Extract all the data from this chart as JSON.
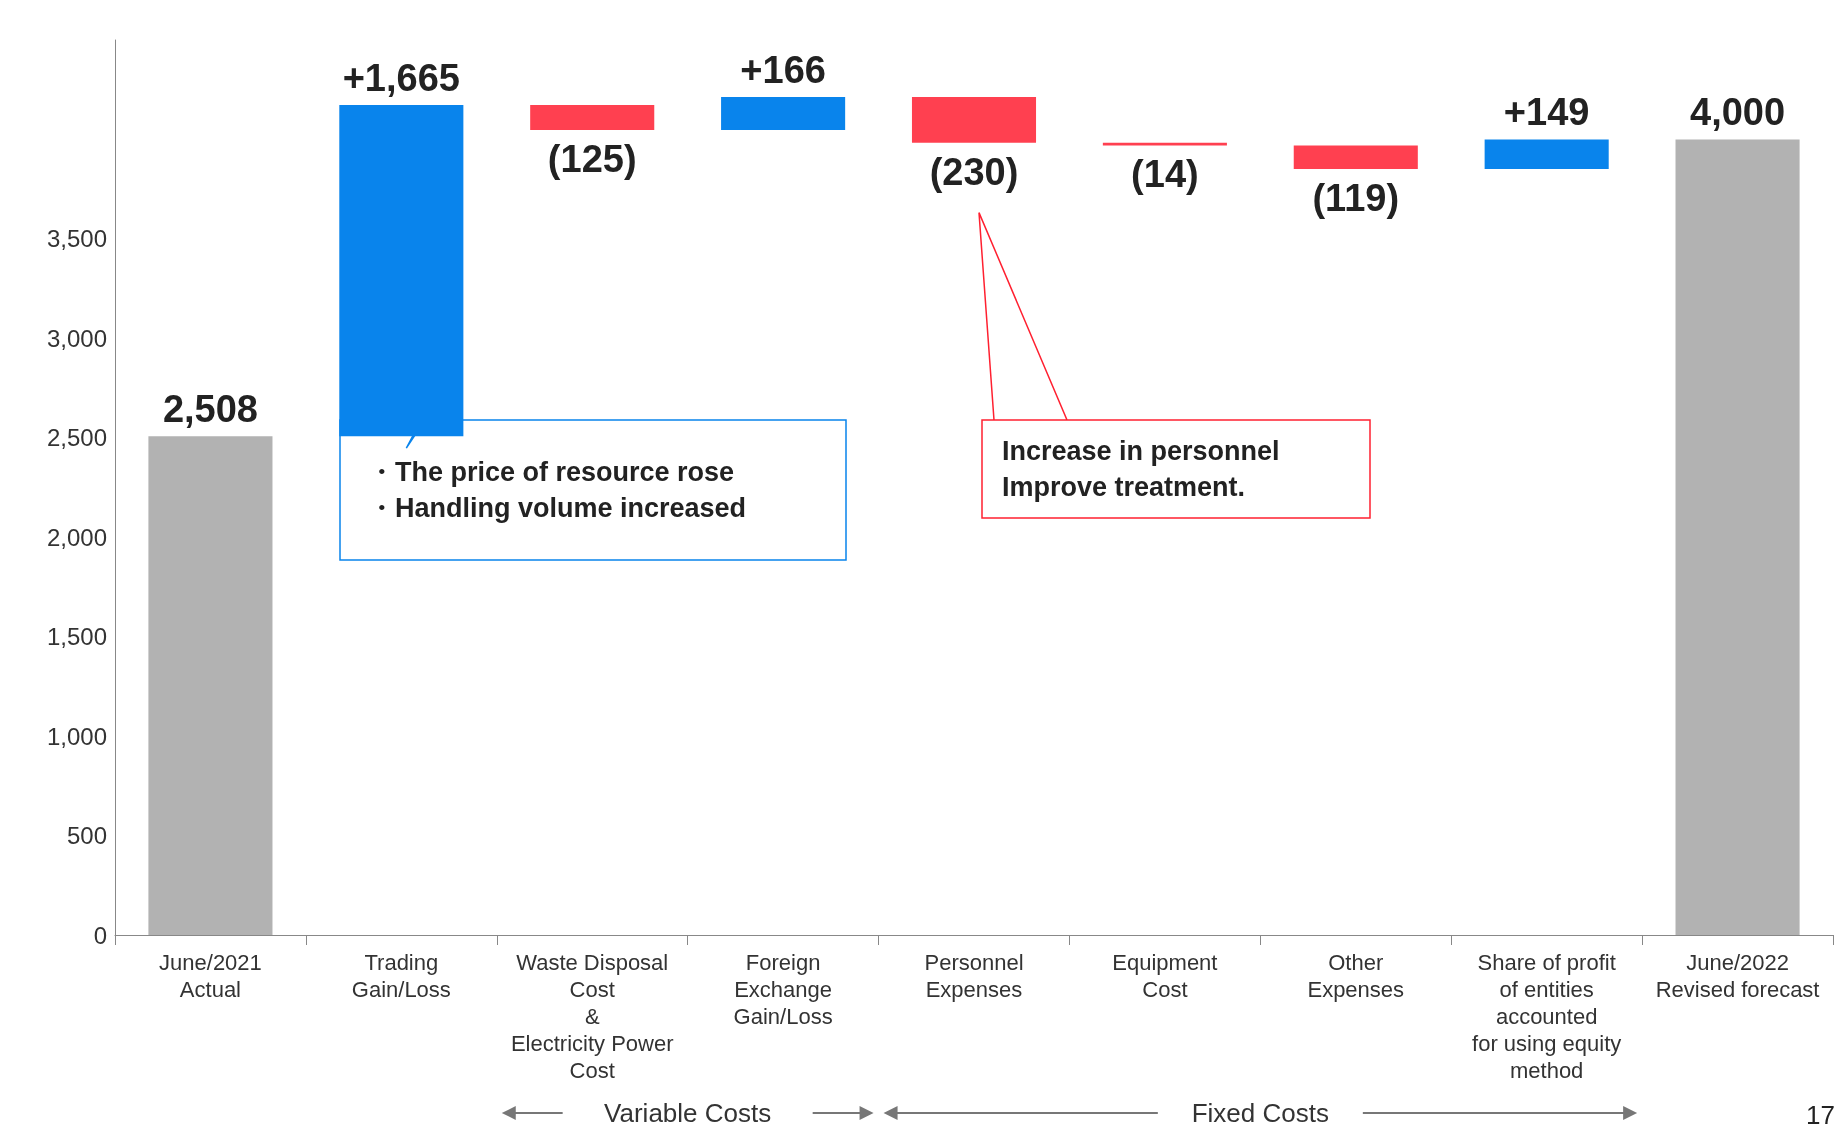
{
  "chart_data": {
    "type": "bar",
    "categories": [
      "June/2021\nActual",
      "Trading\nGain/Loss",
      "Waste Disposal\nCost\n&\nElectricity Power\nCost",
      "Foreign\nExchange\nGain/Loss",
      "Personnel\nExpenses",
      "Equipment\nCost",
      "Other\nExpenses",
      "Share of profit\nof entities\naccounted\nfor using equity\nmethod",
      "June/2022\nRevised forecast"
    ],
    "values": [
      2508,
      1665,
      -125,
      166,
      -230,
      -14,
      -119,
      149,
      4000
    ],
    "base": [
      0,
      2508,
      4173,
      4048,
      4214,
      3984,
      3970,
      3851,
      0
    ],
    "colors": [
      "#b2b2b2",
      "#0984ec",
      "#ff4050",
      "#0984ec",
      "#ff4050",
      "#ff4050",
      "#ff4050",
      "#0984ec",
      "#b2b2b2"
    ],
    "value_labels": [
      "2,508",
      "+1,665",
      "(125)",
      "+166",
      "(230)",
      "(14)",
      "(119)",
      "+149",
      "4,000"
    ],
    "ylim": [
      0,
      4500
    ],
    "yticks": [
      0,
      500,
      {
        "value": 1000,
        "label": "1,000"
      },
      {
        "value": 1500,
        "label": "1,500"
      },
      {
        "value": 2000,
        "label": "2,000"
      },
      {
        "value": 2500,
        "label": "2,500"
      },
      {
        "value": 3000,
        "label": "3,000"
      },
      {
        "value": 3500,
        "label": "3,500"
      }
    ],
    "grid": false,
    "annotations": [
      "・The price of resource rose\n・Handling volume increased",
      "Increase in personnel\nImprove treatment.",
      "Variable Costs",
      "Fixed Costs",
      "17"
    ]
  }
}
